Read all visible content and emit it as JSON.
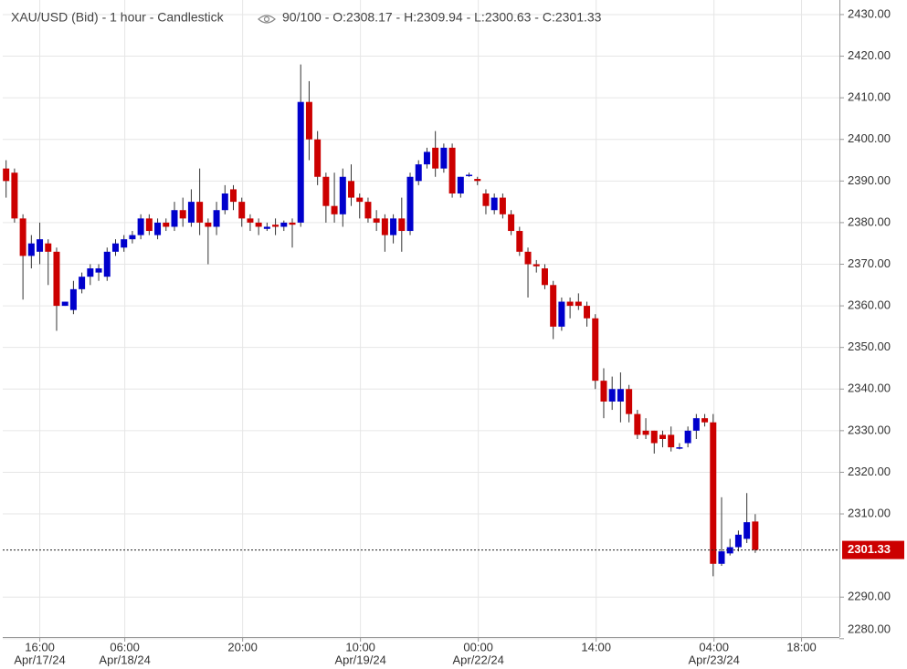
{
  "chart_data": {
    "type": "candlestick",
    "title": "XAU/USD (Bid) - 1 hour - Candlestick",
    "subtitle": "90/100 - O:2308.17 - H:2309.94 - L:2300.63 - C:2301.33",
    "up_color": "#0000cc",
    "down_color": "#cc0000",
    "grid": true,
    "x": [
      0,
      1,
      2,
      3,
      4,
      5,
      6,
      7,
      8,
      9,
      10,
      11,
      12,
      13,
      14,
      15,
      16,
      17,
      18,
      19,
      20,
      21,
      22,
      23,
      24,
      25,
      26,
      27,
      28,
      29,
      30,
      31,
      32,
      33,
      34,
      35,
      36,
      37,
      38,
      39,
      40,
      41,
      42,
      43,
      44,
      45,
      46,
      47,
      48,
      49,
      50,
      51,
      52,
      53,
      54,
      55,
      56,
      57,
      58,
      59,
      60,
      61,
      62,
      63,
      64,
      65,
      66,
      67,
      68,
      69,
      70,
      71,
      72,
      73,
      74,
      75,
      76,
      77,
      78,
      79,
      80,
      81,
      82,
      83,
      84,
      85,
      86,
      87,
      88,
      89
    ],
    "open": [
      2393,
      2392,
      2381,
      2372,
      2373,
      2375,
      2373,
      2360,
      2359,
      2364,
      2367,
      2368,
      2367,
      2373,
      2374,
      2376,
      2377,
      2381,
      2377,
      2380,
      2379,
      2383,
      2380,
      2385,
      2380,
      2379,
      2383,
      2388,
      2385,
      2381,
      2380,
      2378.5,
      2379.5,
      2379,
      2380,
      2380,
      2409,
      2400,
      2391,
      2384,
      2382,
      2390,
      2386,
      2385,
      2381,
      2381,
      2377,
      2381,
      2378,
      2390,
      2394,
      2398,
      2393,
      2398,
      2387,
      2391.5,
      2390.5,
      2387,
      2383,
      2386,
      2382,
      2378,
      2373,
      2370,
      2369,
      2365,
      2355,
      2361,
      2361,
      2360,
      2357,
      2342,
      2337,
      2337,
      2340,
      2334,
      2330,
      2330,
      2329,
      2329,
      2326,
      2327,
      2330,
      2333,
      2332,
      2298,
      2300.5,
      2302,
      2304,
      2308.17
    ],
    "high": [
      2395,
      2393,
      2382,
      2377,
      2380,
      2376,
      2374,
      2361,
      2366,
      2368,
      2370,
      2370,
      2374,
      2376,
      2377,
      2378,
      2382,
      2382,
      2381,
      2381,
      2385,
      2386,
      2388,
      2393,
      2381,
      2385,
      2389,
      2389,
      2386,
      2382,
      2381,
      2380,
      2381,
      2380.5,
      2381,
      2418,
      2414,
      2402,
      2392,
      2392,
      2393,
      2394,
      2387,
      2386,
      2383,
      2382,
      2382,
      2386,
      2392,
      2395,
      2398,
      2402,
      2399,
      2399,
      2391,
      2392,
      2391,
      2388,
      2387,
      2387,
      2383,
      2379,
      2374,
      2371,
      2370,
      2366,
      2362,
      2362,
      2363,
      2361,
      2358,
      2345,
      2343,
      2344,
      2341,
      2335,
      2333,
      2330,
      2330,
      2331,
      2327,
      2331,
      2334,
      2334,
      2334,
      2314,
      2304,
      2306,
      2315,
      2309.94
    ],
    "low": [
      2386,
      2380,
      2361.5,
      2369,
      2370,
      2365,
      2354,
      2360,
      2358,
      2363,
      2365,
      2366,
      2366,
      2372,
      2373,
      2375,
      2376,
      2377,
      2376,
      2378,
      2378,
      2379,
      2379,
      2377,
      2370,
      2377,
      2382,
      2383,
      2379,
      2378,
      2377,
      2378,
      2377,
      2378,
      2374,
      2379,
      2395,
      2389,
      2380,
      2380,
      2379,
      2384,
      2381,
      2380,
      2378,
      2373,
      2375,
      2373,
      2377,
      2389,
      2393,
      2391,
      2392,
      2386,
      2386,
      2391,
      2389,
      2382,
      2382,
      2381,
      2377,
      2372,
      2362,
      2368,
      2364,
      2352,
      2354,
      2357,
      2359,
      2355,
      2340,
      2333,
      2335,
      2332,
      2332,
      2328,
      2328,
      2324.5,
      2326,
      2325,
      2325.5,
      2326,
      2328,
      2331,
      2295,
      2297.5,
      2300,
      2301,
      2303,
      2300.63
    ],
    "close": [
      2390,
      2381,
      2372,
      2375,
      2376,
      2373,
      2360,
      2361,
      2364,
      2367,
      2369,
      2369,
      2373,
      2375,
      2376,
      2377,
      2381,
      2378,
      2380,
      2379,
      2383,
      2381,
      2385,
      2380,
      2379,
      2383,
      2387,
      2385,
      2381,
      2380,
      2379,
      2379,
      2379,
      2380,
      2379.5,
      2409,
      2400,
      2391,
      2384,
      2382,
      2391,
      2386,
      2385,
      2381,
      2380,
      2377,
      2381,
      2378,
      2391,
      2394,
      2397,
      2393,
      2398,
      2387,
      2391,
      2391.5,
      2390,
      2384,
      2386,
      2382,
      2378,
      2373,
      2370,
      2369.5,
      2365,
      2355,
      2361,
      2360,
      2360,
      2357,
      2342,
      2337,
      2340,
      2340,
      2334,
      2329,
      2329,
      2327,
      2328,
      2326,
      2326,
      2330,
      2333,
      2332,
      2298,
      2301,
      2302,
      2305,
      2308,
      2301.33
    ],
    "xlim": [
      -0.4,
      99
    ],
    "xticks": [
      {
        "value": 4,
        "label": "16:00"
      },
      {
        "value": 14.1,
        "label": "06:00"
      },
      {
        "value": 28.1,
        "label": "20:00"
      },
      {
        "value": 42.1,
        "label": "10:00"
      },
      {
        "value": 56.1,
        "label": "00:00"
      },
      {
        "value": 70.1,
        "label": "14:00"
      },
      {
        "value": 84.1,
        "label": "04:00"
      },
      {
        "value": 94.5,
        "label": "18:00"
      }
    ],
    "xtick_dates": [
      {
        "value": 4,
        "label": "Apr/17/24"
      },
      {
        "value": 14.1,
        "label": "Apr/18/24"
      },
      {
        "value": 42.1,
        "label": "Apr/19/24"
      },
      {
        "value": 56.1,
        "label": "Apr/22/24"
      },
      {
        "value": 84.1,
        "label": "Apr/23/24"
      }
    ],
    "ylim": [
      2280.4,
      2433.5
    ],
    "yticks": [
      {
        "value": 2280,
        "label": "2280.00"
      },
      {
        "value": 2290,
        "label": "2290.00"
      },
      {
        "value": 2310,
        "label": "2310.00"
      },
      {
        "value": 2320,
        "label": "2320.00"
      },
      {
        "value": 2330,
        "label": "2330.00"
      },
      {
        "value": 2340,
        "label": "2340.00"
      },
      {
        "value": 2350,
        "label": "2350.00"
      },
      {
        "value": 2360,
        "label": "2360.00"
      },
      {
        "value": 2370,
        "label": "2370.00"
      },
      {
        "value": 2380,
        "label": "2380.00"
      },
      {
        "value": 2390,
        "label": "2390.00"
      },
      {
        "value": 2400,
        "label": "2400.00"
      },
      {
        "value": 2410,
        "label": "2410.00"
      },
      {
        "value": 2420,
        "label": "2420.00"
      },
      {
        "value": 2430,
        "label": "2430.00"
      }
    ],
    "last_price": 2301.33
  }
}
